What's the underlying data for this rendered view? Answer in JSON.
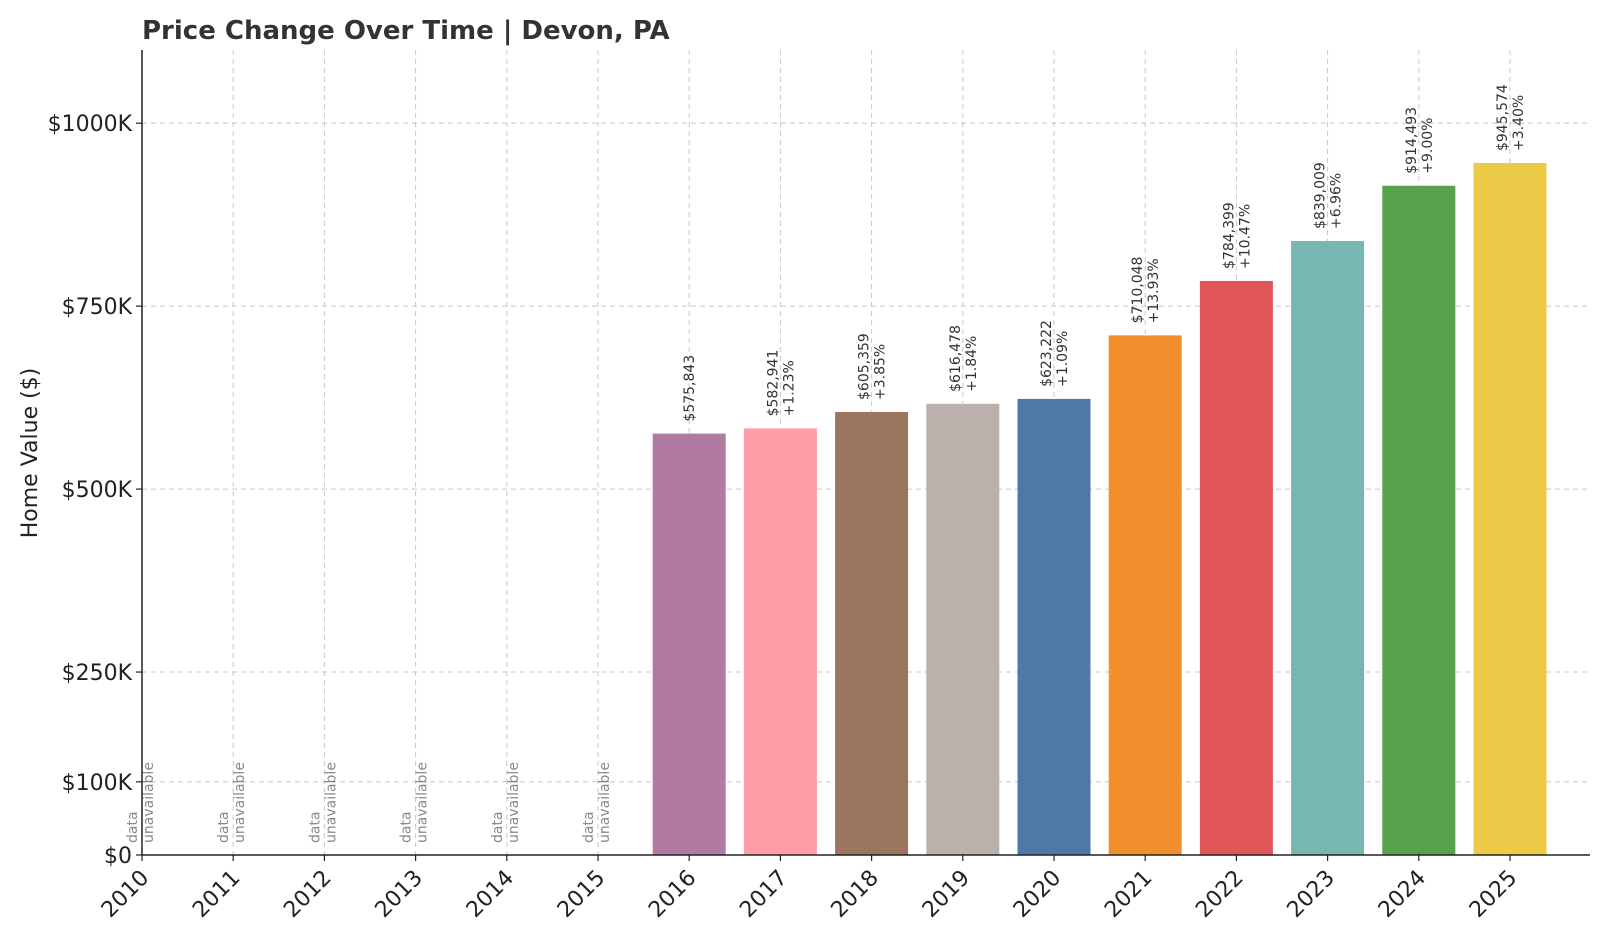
{
  "chart_data": {
    "type": "bar",
    "title": "Price Change Over Time | Devon, PA",
    "xlabel": "",
    "ylabel": "Home Value ($)",
    "ylim": [
      0,
      1100000
    ],
    "yticks": [
      {
        "value": 0,
        "label": "$0"
      },
      {
        "value": 100000,
        "label": "$100K"
      },
      {
        "value": 250000,
        "label": "$250K"
      },
      {
        "value": 500000,
        "label": "$500K"
      },
      {
        "value": 750000,
        "label": "$750K"
      },
      {
        "value": 1000000,
        "label": "$1000K"
      }
    ],
    "grid": true,
    "categories": [
      "2010",
      "2011",
      "2012",
      "2013",
      "2014",
      "2015",
      "2016",
      "2017",
      "2018",
      "2019",
      "2020",
      "2021",
      "2022",
      "2023",
      "2024",
      "2025"
    ],
    "values": [
      null,
      null,
      null,
      null,
      null,
      null,
      575843,
      582941,
      605359,
      616478,
      623222,
      710048,
      784399,
      839009,
      914493,
      945574
    ],
    "value_labels": [
      "",
      "",
      "",
      "",
      "",
      "",
      "$575,843",
      "$582,941",
      "$605,359",
      "$616,478",
      "$623,222",
      "$710,048",
      "$784,399",
      "$839,009",
      "$914,493",
      "$945,574"
    ],
    "change_labels": [
      "",
      "",
      "",
      "",
      "",
      "",
      "",
      "+1.23%",
      "+3.85%",
      "+1.84%",
      "+1.09%",
      "+13.93%",
      "+10.47%",
      "+6.96%",
      "+9.00%",
      "+3.40%"
    ],
    "unavailable_text": [
      "data",
      "unavailable"
    ],
    "colors": [
      "#b07aa1",
      "#b07aa1",
      "#b07aa1",
      "#b07aa1",
      "#b07aa1",
      "#b07aa1",
      "#b07aa1",
      "#ff9da7",
      "#9c755f",
      "#bab0ac",
      "#4e79a7",
      "#f28e2b",
      "#e15759",
      "#76b7b2",
      "#59a14f",
      "#edc948"
    ]
  }
}
